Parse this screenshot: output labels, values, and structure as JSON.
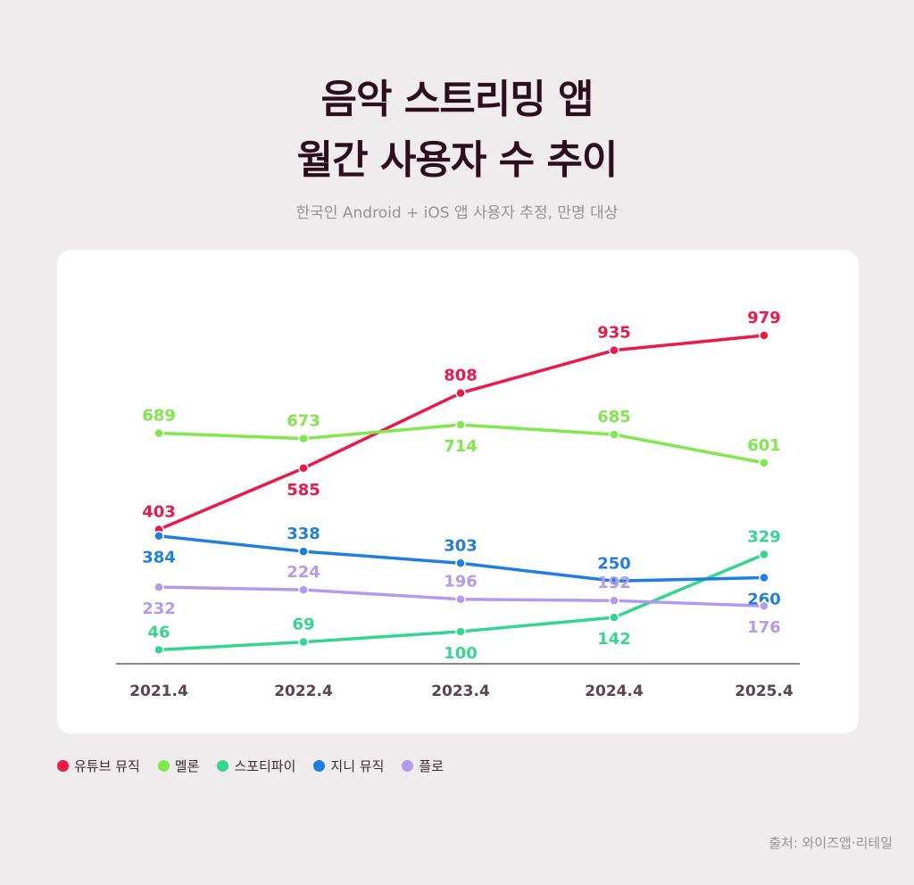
{
  "title_line1": "음악 스트리밍 앱",
  "title_line2": "월간 사용자 수 추이",
  "subtitle": "한국인 Android + iOS 앱 사용자 추정, 만명 대상",
  "source": "출처: 와이즈앱·리테일",
  "chart_data": {
    "type": "line",
    "title": "음악 스트리밍 앱 월간 사용자 수 추이",
    "subtitle": "한국인 Android + iOS 앱 사용자 추정, 만명 대상",
    "categories": [
      "2021.4",
      "2022.4",
      "2023.4",
      "2024.4",
      "2025.4"
    ],
    "ylim": [
      0,
      1000
    ],
    "grid": false,
    "legend_position": "bottom-left",
    "series": [
      {
        "name": "유튜브 뮤직",
        "color": "#ee1848",
        "values": [
          403,
          585,
          808,
          935,
          979
        ]
      },
      {
        "name": "멜론",
        "color": "#7fe84b",
        "values": [
          689,
          673,
          714,
          685,
          601
        ]
      },
      {
        "name": "스포티파이",
        "color": "#33d68f",
        "values": [
          46,
          69,
          100,
          142,
          329
        ]
      },
      {
        "name": "지니 뮤직",
        "color": "#1f7fe0",
        "values": [
          384,
          338,
          303,
          250,
          260
        ]
      },
      {
        "name": "플로",
        "color": "#b29af0",
        "values": [
          232,
          224,
          196,
          192,
          176
        ]
      }
    ]
  }
}
